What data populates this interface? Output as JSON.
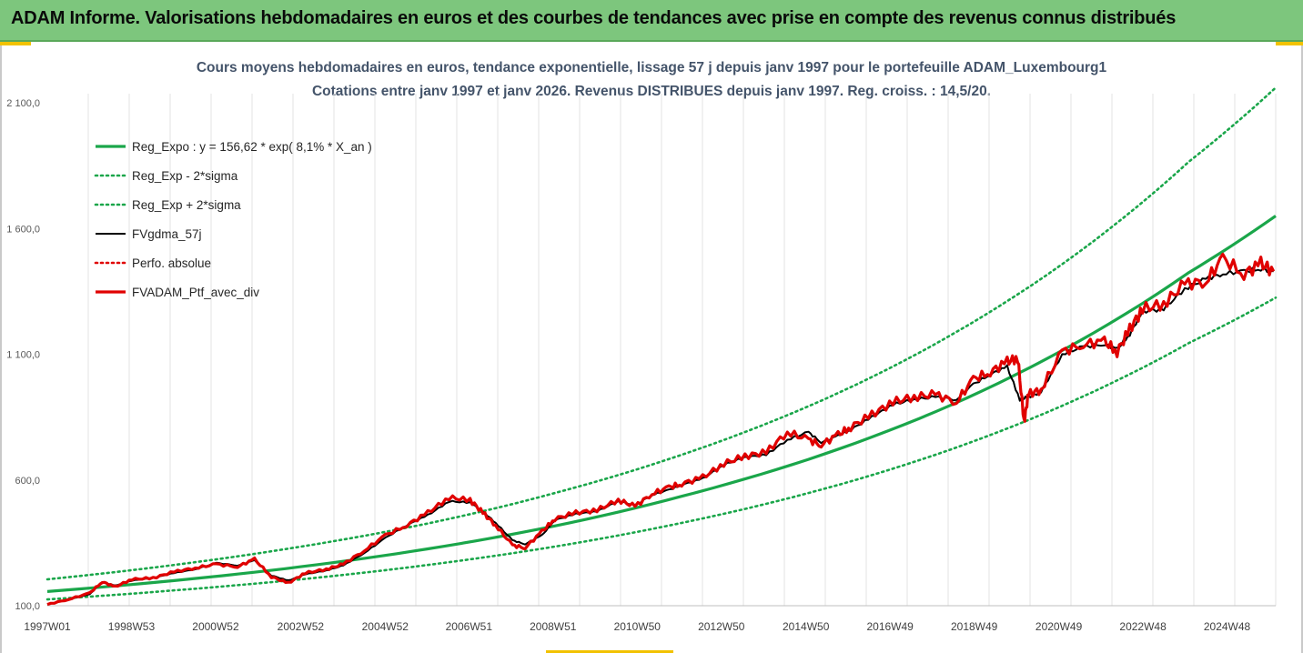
{
  "header": {
    "title": "ADAM Informe. Valorisations hebdomadaires en euros et des courbes de tendances avec prise en compte des revenus connus distribués"
  },
  "colors": {
    "header_bg": "#7dc67d",
    "trend": "#1aa64a",
    "black": "#000000",
    "red": "#e00000",
    "accent": "#f2c200"
  },
  "chart_data": {
    "type": "line",
    "title": "Cours moyens hebdomadaires  en euros, tendance exponentielle, lissage 57 j depuis janv 1997 pour le portefeuille ADAM_Luxembourg1",
    "subtitle": "Cotations entre janv 1997 et janv 2026. Revenus DISTRIBUES depuis janv 1997. Reg. croiss. : 14,5/20.",
    "xlabel": "",
    "ylabel": "",
    "x_range": [
      1997.0,
      2026.05
    ],
    "ylim": [
      100,
      2100
    ],
    "y_ticks": [
      100,
      600,
      1100,
      1600,
      2100
    ],
    "y_tick_labels": [
      "100,0",
      "600,0",
      "1 100,0",
      "1 600,0",
      "2 100,0"
    ],
    "x_ticks": [
      1997.0,
      1998.99,
      2000.98,
      2002.99,
      2004.99,
      2006.97,
      2008.96,
      2010.95,
      2012.94,
      2014.94,
      2016.93,
      2018.92,
      2020.92,
      2022.91,
      2024.9
    ],
    "x_tick_labels": [
      "1997W01",
      "1998W53",
      "2000W52",
      "2002W52",
      "2004W52",
      "2006W51",
      "2008W51",
      "2010W50",
      "2012W50",
      "2014W50",
      "2016W49",
      "2018W49",
      "2020W49",
      "2022W48",
      "2024W48"
    ],
    "gridlines": "vertical",
    "legend_position": "top-left",
    "series": [
      {
        "name": "Reg_Expo : y = 156,62 * exp( 8,1% *  X_an )",
        "style": "solid-thick",
        "color": "#1aa64a",
        "x": [
          1997,
          2000,
          2003,
          2006,
          2009,
          2012,
          2015,
          2018,
          2021,
          2024,
          2026.05
        ],
        "values": [
          156.6,
          200,
          255,
          326,
          417,
          535,
          682,
          871,
          1115,
          1425,
          1650
        ]
      },
      {
        "name": "Reg_Exp - 2*sigma",
        "style": "dotted",
        "color": "#1aa64a",
        "x": [
          1997,
          2000,
          2003,
          2006,
          2009,
          2012,
          2015,
          2018,
          2021,
          2024,
          2026.05
        ],
        "values": [
          125,
          161,
          205,
          262,
          335,
          429,
          548,
          700,
          895,
          1145,
          1325
        ]
      },
      {
        "name": "Reg_Exp + 2*sigma",
        "style": "dotted",
        "color": "#1aa64a",
        "x": [
          1997,
          2000,
          2003,
          2006,
          2009,
          2012,
          2015,
          2018,
          2021,
          2024,
          2026.05
        ],
        "values": [
          205,
          262,
          335,
          427,
          548,
          700,
          893,
          1141,
          1458,
          1866,
          2160
        ]
      },
      {
        "name": "FVgdma_57j",
        "style": "solid",
        "color": "#000000",
        "x": [
          1997,
          1997.5,
          1998,
          1998.3,
          1998.6,
          1999,
          1999.5,
          2000,
          2000.5,
          2001,
          2001.5,
          2001.9,
          2002.3,
          2002.7,
          2003.1,
          2003.6,
          2004,
          2004.5,
          2005,
          2005.5,
          2006,
          2006.5,
          2007,
          2007.3,
          2007.6,
          2008,
          2008.3,
          2008.7,
          2009,
          2009.5,
          2010,
          2010.5,
          2010.9,
          2011.3,
          2011.7,
          2012,
          2012.5,
          2013,
          2013.5,
          2014,
          2014.5,
          2015,
          2015.3,
          2015.7,
          2016,
          2016.5,
          2017,
          2017.5,
          2018,
          2018.5,
          2018.9,
          2019.3,
          2019.7,
          2020,
          2020.2,
          2020.5,
          2021,
          2021.5,
          2022,
          2022.3,
          2022.6,
          2022.9,
          2023.4,
          2023.9,
          2024.4,
          2024.8,
          2025.3,
          2025.7,
          2026
        ],
        "values": [
          105,
          125,
          145,
          195,
          180,
          200,
          210,
          230,
          245,
          270,
          260,
          280,
          220,
          200,
          225,
          240,
          260,
          310,
          370,
          420,
          460,
          515,
          510,
          475,
          430,
          360,
          345,
          380,
          440,
          465,
          475,
          515,
          500,
          540,
          560,
          580,
          605,
          660,
          690,
          700,
          760,
          790,
          750,
          775,
          800,
          850,
          900,
          920,
          930,
          920,
          980,
          1020,
          1050,
          920,
          930,
          950,
          1100,
          1130,
          1140,
          1120,
          1180,
          1270,
          1280,
          1360,
          1400,
          1420,
          1430,
          1440,
          1430
        ]
      },
      {
        "name": "Perfo. absolue",
        "style": "dotted",
        "color": "#e00000",
        "x": [],
        "values": []
      },
      {
        "name": "FVADAM_Ptf_avec_div",
        "style": "solid-thick",
        "color": "#e00000",
        "x": [
          1997,
          1997.5,
          1998,
          1998.3,
          1998.6,
          1999,
          1999.5,
          2000,
          2000.5,
          2001,
          2001.5,
          2001.9,
          2002.3,
          2002.7,
          2003.1,
          2003.6,
          2004,
          2004.5,
          2005,
          2005.5,
          2006,
          2006.5,
          2007,
          2007.3,
          2007.6,
          2008,
          2008.3,
          2008.7,
          2009,
          2009.5,
          2010,
          2010.5,
          2010.9,
          2011.3,
          2011.7,
          2012,
          2012.5,
          2013,
          2013.5,
          2014,
          2014.5,
          2015,
          2015.3,
          2015.7,
          2016,
          2016.5,
          2017,
          2017.5,
          2018,
          2018.5,
          2018.9,
          2019.3,
          2019.7,
          2019.95,
          2020.1,
          2020.2,
          2020.5,
          2021,
          2021.5,
          2022,
          2022.3,
          2022.6,
          2022.9,
          2023.4,
          2023.9,
          2024.4,
          2024.8,
          2025.3,
          2025.7,
          2026
        ],
        "values": [
          105,
          125,
          150,
          195,
          175,
          205,
          210,
          235,
          250,
          265,
          255,
          285,
          215,
          190,
          230,
          245,
          265,
          320,
          380,
          420,
          470,
          530,
          520,
          470,
          420,
          340,
          330,
          395,
          445,
          470,
          480,
          520,
          495,
          545,
          570,
          585,
          610,
          665,
          695,
          710,
          790,
          760,
          740,
          780,
          810,
          860,
          910,
          930,
          940,
          910,
          1000,
          1030,
          1070,
          1085,
          830,
          940,
          960,
          1110,
          1140,
          1150,
          1110,
          1200,
          1280,
          1300,
          1380,
          1390,
          1480,
          1420,
          1460,
          1430
        ]
      }
    ]
  }
}
